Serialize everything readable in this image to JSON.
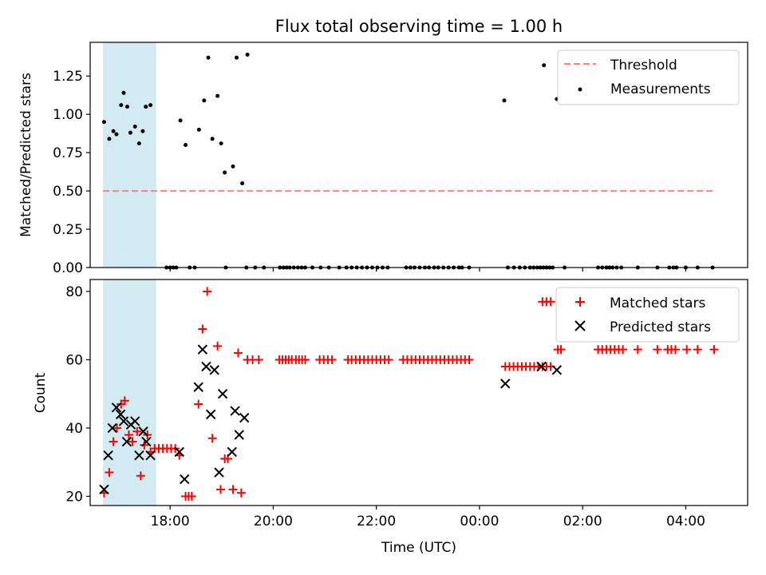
{
  "title": "Flux total observing time = 1.00 h",
  "chart_data": [
    {
      "type": "scatter",
      "panel": "top",
      "ylabel": "Matched/Predicted stars",
      "xlim": [
        16.45,
        29.2
      ],
      "ylim": [
        0,
        1.47
      ],
      "yticks": [
        0,
        0.25,
        0.5,
        0.75,
        1.0,
        1.25
      ],
      "ytick_labels": [
        "0.00",
        "0.25",
        "0.50",
        "0.75",
        "1.00",
        "1.25"
      ],
      "shaded_interval": [
        16.7,
        17.73
      ],
      "threshold": {
        "name": "Threshold",
        "y": 0.5,
        "x_range": [
          16.7,
          28.55
        ],
        "color": "#ff8080"
      },
      "legend": {
        "placement": "top-right",
        "entries": [
          "Threshold",
          "Measurements"
        ]
      },
      "series": [
        {
          "name": "Measurements",
          "color": "#000000",
          "points": [
            [
              16.72,
              0.95
            ],
            [
              16.82,
              0.84
            ],
            [
              16.9,
              0.89
            ],
            [
              16.96,
              0.87
            ],
            [
              17.05,
              1.06
            ],
            [
              17.1,
              1.14
            ],
            [
              17.17,
              1.05
            ],
            [
              17.23,
              0.88
            ],
            [
              17.32,
              0.92
            ],
            [
              17.4,
              0.81
            ],
            [
              17.47,
              0.89
            ],
            [
              17.53,
              1.05
            ],
            [
              17.62,
              1.06
            ],
            [
              18.2,
              0.96
            ],
            [
              18.3,
              0.8
            ],
            [
              18.56,
              0.9
            ],
            [
              18.66,
              1.09
            ],
            [
              18.74,
              1.37
            ],
            [
              18.82,
              0.84
            ],
            [
              18.92,
              1.12
            ],
            [
              18.99,
              0.81
            ],
            [
              19.06,
              0.62
            ],
            [
              19.22,
              0.66
            ],
            [
              19.29,
              1.37
            ],
            [
              19.4,
              0.55
            ],
            [
              19.5,
              1.39
            ],
            [
              24.48,
              1.09
            ],
            [
              25.25,
              1.32
            ],
            [
              25.5,
              1.1
            ],
            [
              17.93,
              0
            ],
            [
              18.0,
              0
            ],
            [
              18.06,
              0
            ],
            [
              18.12,
              0
            ],
            [
              18.38,
              0
            ],
            [
              18.48,
              0
            ],
            [
              19.08,
              0
            ],
            [
              19.48,
              0
            ],
            [
              19.65,
              0
            ],
            [
              19.82,
              0
            ],
            [
              20.13,
              0
            ],
            [
              20.2,
              0
            ],
            [
              20.26,
              0
            ],
            [
              20.32,
              0
            ],
            [
              20.4,
              0
            ],
            [
              20.48,
              0
            ],
            [
              20.55,
              0
            ],
            [
              20.62,
              0
            ],
            [
              20.76,
              0
            ],
            [
              20.92,
              0
            ],
            [
              21.08,
              0
            ],
            [
              21.28,
              0
            ],
            [
              21.42,
              0
            ],
            [
              21.52,
              0
            ],
            [
              21.62,
              0
            ],
            [
              21.72,
              0
            ],
            [
              21.82,
              0
            ],
            [
              21.92,
              0
            ],
            [
              22.02,
              0
            ],
            [
              22.12,
              0
            ],
            [
              22.22,
              0
            ],
            [
              22.58,
              0
            ],
            [
              22.66,
              0
            ],
            [
              22.74,
              0
            ],
            [
              22.84,
              0
            ],
            [
              22.94,
              0
            ],
            [
              23.02,
              0
            ],
            [
              23.12,
              0
            ],
            [
              23.2,
              0
            ],
            [
              23.3,
              0
            ],
            [
              23.4,
              0
            ],
            [
              23.5,
              0
            ],
            [
              23.6,
              0
            ],
            [
              23.66,
              0
            ],
            [
              23.8,
              0
            ],
            [
              24.55,
              0
            ],
            [
              24.67,
              0
            ],
            [
              24.78,
              0
            ],
            [
              24.88,
              0
            ],
            [
              24.98,
              0
            ],
            [
              25.05,
              0
            ],
            [
              25.12,
              0
            ],
            [
              25.18,
              0
            ],
            [
              25.24,
              0
            ],
            [
              25.3,
              0
            ],
            [
              25.36,
              0
            ],
            [
              25.42,
              0
            ],
            [
              25.65,
              0
            ],
            [
              26.3,
              0
            ],
            [
              26.38,
              0
            ],
            [
              26.46,
              0
            ],
            [
              26.52,
              0
            ],
            [
              26.58,
              0
            ],
            [
              26.66,
              0
            ],
            [
              26.75,
              0
            ],
            [
              27.07,
              0
            ],
            [
              27.45,
              0
            ],
            [
              27.68,
              0
            ],
            [
              27.76,
              0
            ],
            [
              27.82,
              0
            ],
            [
              28.0,
              0
            ],
            [
              28.23,
              0
            ],
            [
              28.52,
              0
            ]
          ]
        }
      ]
    },
    {
      "type": "scatter",
      "panel": "bottom",
      "xlabel": "Time (UTC)",
      "ylabel": "Count",
      "xlim": [
        16.45,
        29.2
      ],
      "ylim": [
        17.3,
        83.5
      ],
      "xticks": [
        18,
        20,
        22,
        24,
        26,
        28
      ],
      "xtick_labels": [
        "18:00",
        "20:00",
        "22:00",
        "00:00",
        "02:00",
        "04:00"
      ],
      "yticks": [
        20,
        40,
        60,
        80
      ],
      "ytick_labels": [
        "20",
        "40",
        "60",
        "80"
      ],
      "shaded_interval": [
        16.7,
        17.73
      ],
      "legend": {
        "placement": "top-right",
        "entries": [
          "Matched stars",
          "Predicted stars"
        ]
      },
      "series": [
        {
          "name": "Matched stars",
          "color": "#ff0000",
          "marker": "plus",
          "points": [
            [
              16.72,
              21
            ],
            [
              16.82,
              27
            ],
            [
              16.9,
              36
            ],
            [
              16.97,
              40
            ],
            [
              17.05,
              47
            ],
            [
              17.12,
              48
            ],
            [
              17.2,
              38
            ],
            [
              17.27,
              36
            ],
            [
              17.36,
              39
            ],
            [
              17.43,
              26
            ],
            [
              17.5,
              35
            ],
            [
              17.56,
              38
            ],
            [
              17.62,
              33
            ],
            [
              17.7,
              34
            ],
            [
              17.78,
              34
            ],
            [
              17.86,
              34
            ],
            [
              17.94,
              34
            ],
            [
              18.02,
              34
            ],
            [
              18.1,
              34
            ],
            [
              18.18,
              32
            ],
            [
              18.3,
              20
            ],
            [
              18.36,
              20
            ],
            [
              18.42,
              20
            ],
            [
              18.55,
              47
            ],
            [
              18.63,
              69
            ],
            [
              18.72,
              80
            ],
            [
              18.82,
              37
            ],
            [
              18.92,
              64
            ],
            [
              18.98,
              22
            ],
            [
              19.06,
              31
            ],
            [
              19.12,
              31
            ],
            [
              19.22,
              22
            ],
            [
              19.32,
              62
            ],
            [
              19.38,
              21
            ],
            [
              19.5,
              60
            ],
            [
              19.6,
              60
            ],
            [
              19.72,
              60
            ],
            [
              20.12,
              60
            ],
            [
              20.18,
              60
            ],
            [
              20.24,
              60
            ],
            [
              20.3,
              60
            ],
            [
              20.36,
              60
            ],
            [
              20.44,
              60
            ],
            [
              20.5,
              60
            ],
            [
              20.56,
              60
            ],
            [
              20.62,
              60
            ],
            [
              20.9,
              60
            ],
            [
              20.98,
              60
            ],
            [
              21.06,
              60
            ],
            [
              21.14,
              60
            ],
            [
              21.45,
              60
            ],
            [
              21.52,
              60
            ],
            [
              21.6,
              60
            ],
            [
              21.68,
              60
            ],
            [
              21.76,
              60
            ],
            [
              21.84,
              60
            ],
            [
              21.92,
              60
            ],
            [
              22.0,
              60
            ],
            [
              22.08,
              60
            ],
            [
              22.16,
              60
            ],
            [
              22.24,
              60
            ],
            [
              22.52,
              60
            ],
            [
              22.6,
              60
            ],
            [
              22.68,
              60
            ],
            [
              22.76,
              60
            ],
            [
              22.84,
              60
            ],
            [
              22.92,
              60
            ],
            [
              23.0,
              60
            ],
            [
              23.08,
              60
            ],
            [
              23.16,
              60
            ],
            [
              23.24,
              60
            ],
            [
              23.32,
              60
            ],
            [
              23.4,
              60
            ],
            [
              23.48,
              60
            ],
            [
              23.56,
              60
            ],
            [
              23.64,
              60
            ],
            [
              23.72,
              60
            ],
            [
              23.8,
              60
            ],
            [
              24.5,
              58
            ],
            [
              24.58,
              58
            ],
            [
              24.66,
              58
            ],
            [
              24.74,
              58
            ],
            [
              24.82,
              58
            ],
            [
              24.9,
              58
            ],
            [
              24.98,
              58
            ],
            [
              25.06,
              58
            ],
            [
              25.14,
              58
            ],
            [
              25.22,
              58
            ],
            [
              25.3,
              58
            ],
            [
              25.38,
              58
            ],
            [
              25.22,
              77
            ],
            [
              25.3,
              77
            ],
            [
              25.38,
              77
            ],
            [
              25.52,
              63
            ],
            [
              25.58,
              63
            ],
            [
              26.3,
              63
            ],
            [
              26.38,
              63
            ],
            [
              26.46,
              63
            ],
            [
              26.54,
              63
            ],
            [
              26.62,
              63
            ],
            [
              26.7,
              63
            ],
            [
              26.78,
              63
            ],
            [
              27.07,
              63
            ],
            [
              27.45,
              63
            ],
            [
              27.65,
              63
            ],
            [
              27.72,
              63
            ],
            [
              27.8,
              63
            ],
            [
              28.02,
              63
            ],
            [
              28.23,
              63
            ],
            [
              28.55,
              63
            ]
          ]
        },
        {
          "name": "Predicted stars",
          "color": "#000000",
          "marker": "x",
          "points": [
            [
              16.72,
              22
            ],
            [
              16.8,
              32
            ],
            [
              16.88,
              40
            ],
            [
              16.96,
              46
            ],
            [
              17.04,
              44
            ],
            [
              17.1,
              42
            ],
            [
              17.16,
              36
            ],
            [
              17.24,
              41
            ],
            [
              17.32,
              42
            ],
            [
              17.4,
              32
            ],
            [
              17.48,
              39
            ],
            [
              17.54,
              36
            ],
            [
              17.62,
              32
            ],
            [
              18.18,
              33
            ],
            [
              18.28,
              25
            ],
            [
              18.55,
              52
            ],
            [
              18.63,
              63
            ],
            [
              18.7,
              58
            ],
            [
              18.79,
              44
            ],
            [
              18.86,
              57
            ],
            [
              18.95,
              27
            ],
            [
              19.02,
              50
            ],
            [
              19.2,
              33
            ],
            [
              19.26,
              45
            ],
            [
              19.34,
              38
            ],
            [
              19.44,
              43
            ],
            [
              24.5,
              53
            ],
            [
              25.2,
              58
            ],
            [
              25.5,
              57
            ]
          ]
        }
      ]
    }
  ]
}
